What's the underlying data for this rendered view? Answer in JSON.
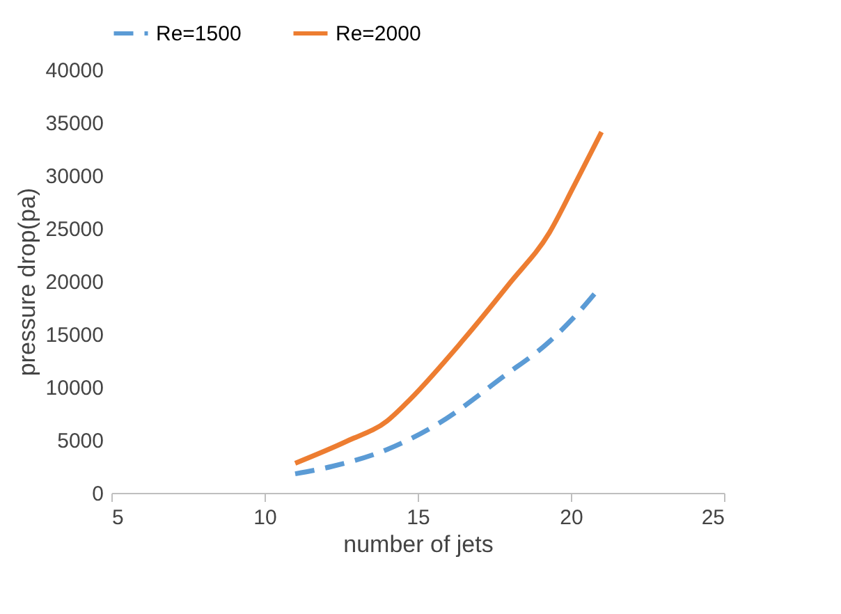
{
  "chart_data": {
    "type": "line",
    "xlabel": "number of jets",
    "ylabel": "pressure drop(pa)",
    "xlim": [
      5,
      25
    ],
    "xticks": [
      5,
      10,
      15,
      20,
      25
    ],
    "ylim": [
      0,
      40000
    ],
    "yticks": [
      0,
      5000,
      10000,
      15000,
      20000,
      25000,
      30000,
      35000,
      40000
    ],
    "grid": false,
    "legend": "top",
    "marker": "none",
    "series": [
      {
        "name": "Re=1500",
        "color": "#5b9bd5",
        "line_style": "dashed",
        "x": [
          11,
          12.2,
          14,
          15.7,
          17.8,
          19.3,
          20.2,
          21
        ],
        "values": [
          1800,
          2500,
          4100,
          6600,
          11000,
          14300,
          16900,
          19600
        ]
      },
      {
        "name": "Re=2000",
        "color": "#ed7d31",
        "line_style": "solid",
        "x": [
          11,
          12.7,
          14,
          14.6,
          16.5,
          18,
          19.3,
          20.1,
          21
        ],
        "values": [
          2800,
          4900,
          6800,
          8400,
          14500,
          19800,
          24600,
          29000,
          34100
        ]
      }
    ]
  }
}
